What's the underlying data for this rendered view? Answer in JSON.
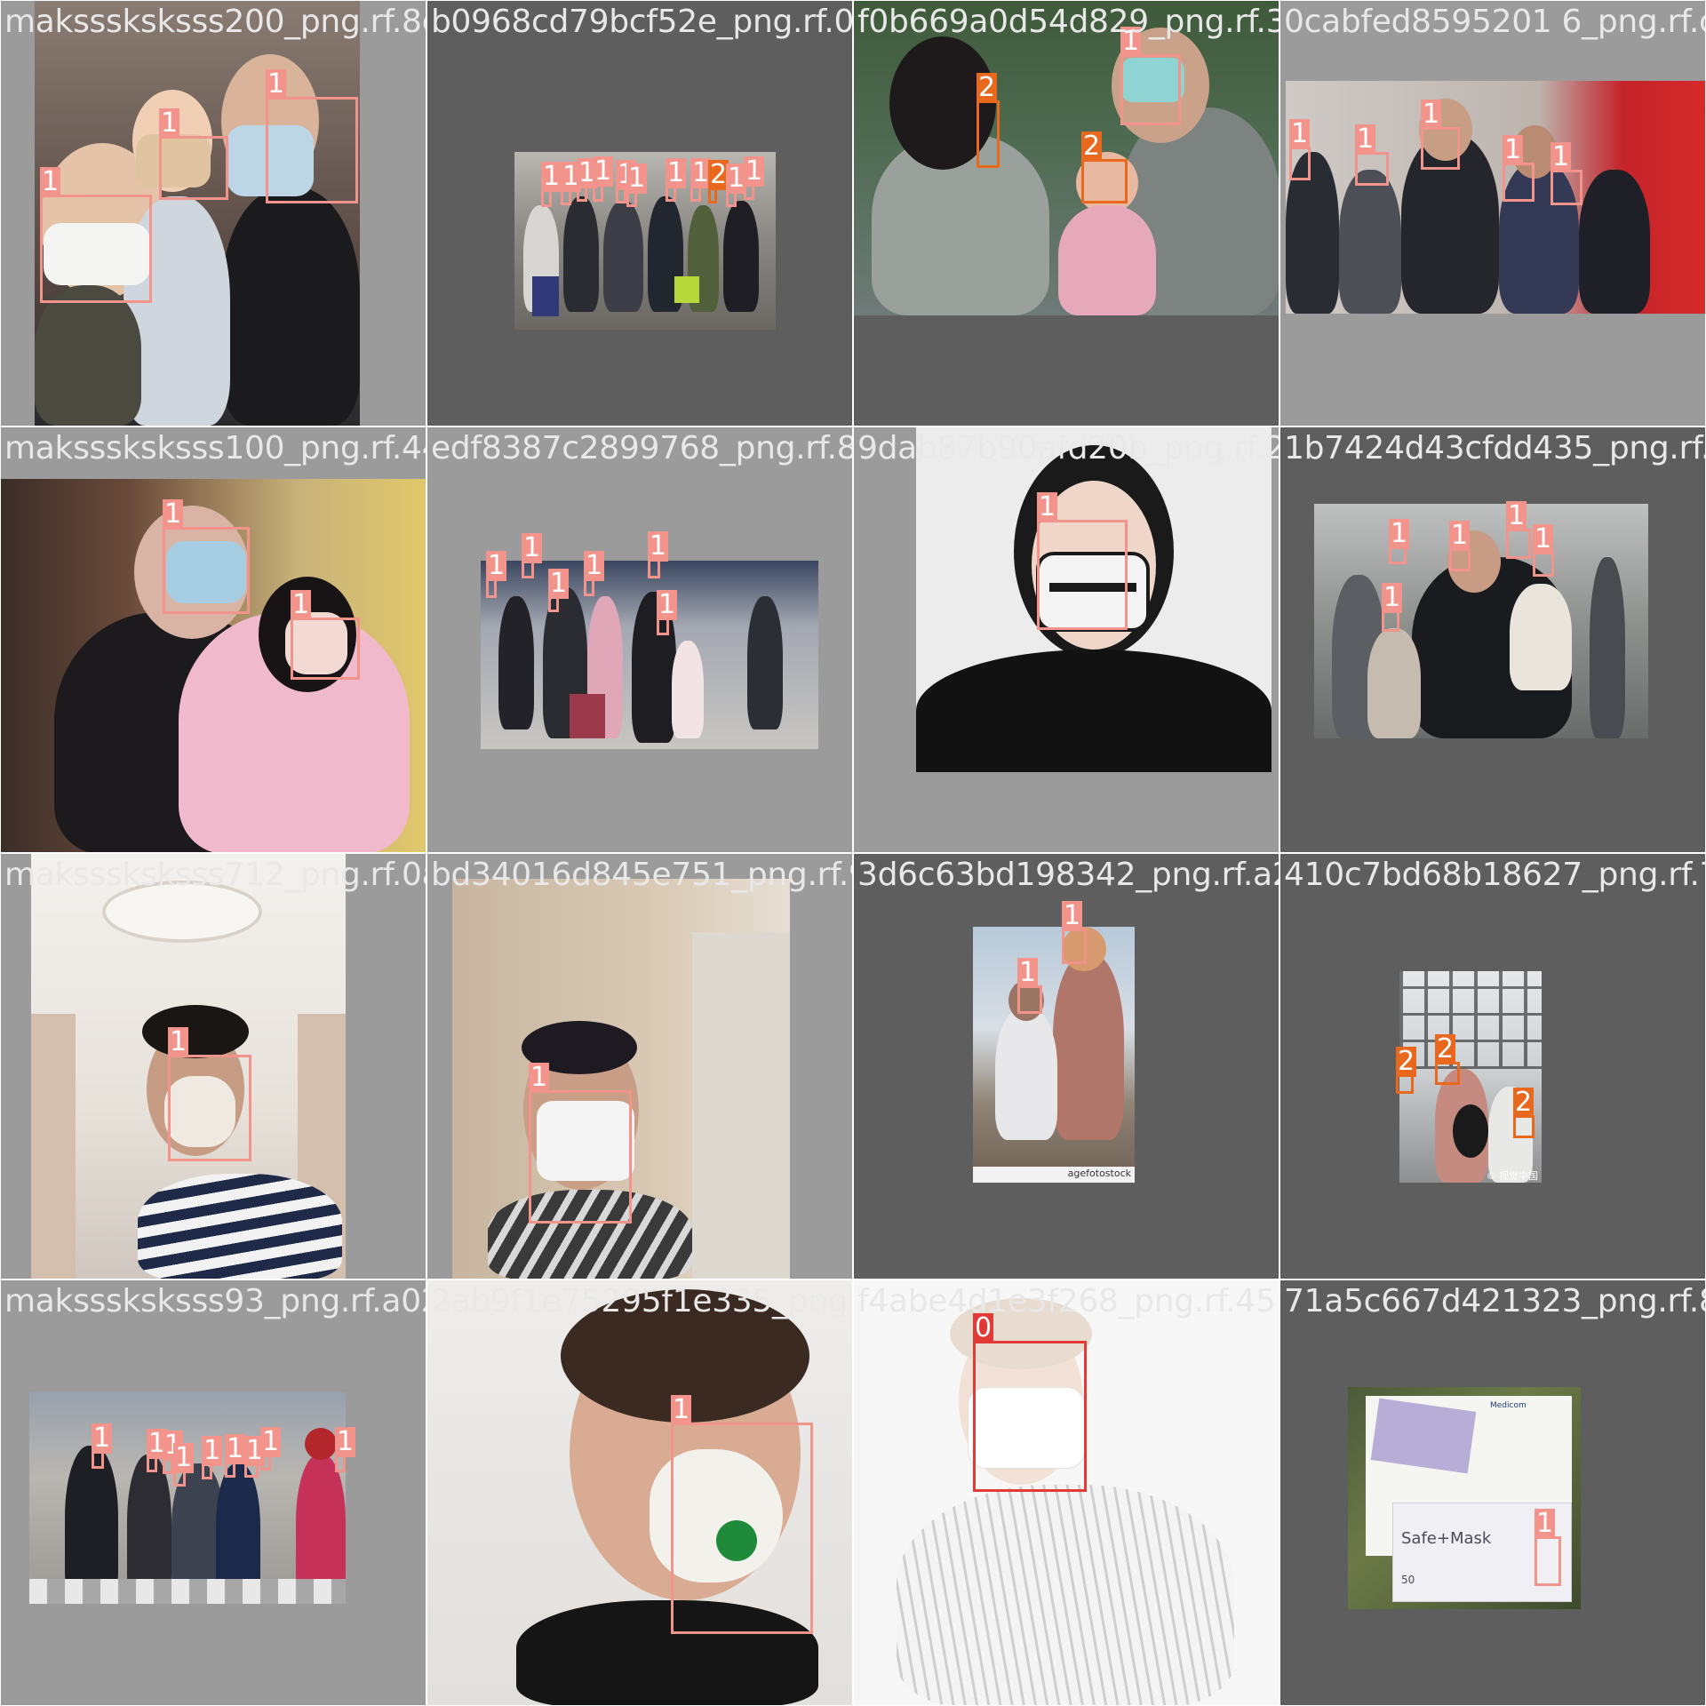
{
  "mosaic": {
    "tiles": [
      {
        "filename": "maksssksksss200_png.rf.8eb0963dd79bcf52",
        "labels": [
          "1",
          "1",
          "1"
        ]
      },
      {
        "filename": "b0968cd79bcf52e_png.rf.0c2f0b669a0d54d829",
        "labels": [
          "1",
          "1",
          "1",
          "1",
          "1",
          "1",
          "1",
          "1",
          "2",
          "1",
          "1"
        ]
      },
      {
        "filename": "f0b669a0d54d829_png.rf.390cabfed85952017",
        "labels": [
          "1",
          "2",
          "2"
        ]
      },
      {
        "filename": "0cabfed8595201 6_png.rf.ca",
        "labels": [
          "1",
          "1",
          "1",
          "1",
          "1"
        ]
      },
      {
        "filename": "maksssksksss100_png.rf.44edf8387c2899768",
        "labels": [
          "1",
          "1"
        ]
      },
      {
        "filename": "edf8387c2899768_png.rf.889dab87b90afd20b",
        "labels": [
          "1",
          "1",
          "1",
          "1",
          "1",
          "1",
          "1"
        ]
      },
      {
        "filename": "9dab87b90afd20b_png.rf.2d1b7424d43cfdd435",
        "labels": [
          "1"
        ]
      },
      {
        "filename": "1b7424d43cfdd435_png.rf.22",
        "labels": [
          "1",
          "1",
          "1",
          "1",
          "1"
        ]
      },
      {
        "filename": "maksssksksss712_png.rf.0abd34016d845e751",
        "labels": [
          "1"
        ]
      },
      {
        "filename": "bd34016d845e751_png.rf.9ff3d6c63bd198342",
        "labels": [
          "1"
        ]
      },
      {
        "filename": "3d6c63bd198342_png.rf.a2410c7bd68b18627",
        "labels": [
          "1",
          "1"
        ]
      },
      {
        "filename": "410c7bd68b18627_png.rf.7c",
        "labels": [
          "2",
          "2",
          "2"
        ]
      },
      {
        "filename": "maksssksksss93_png.rf.a02ab9f1e75295f1e335",
        "labels": [
          "1",
          "1",
          "1",
          "1",
          "1",
          "1",
          "1",
          "1",
          "1"
        ]
      },
      {
        "filename": "2ab9f1e75295f1e335_png.rf.5cf4abe4d1e3f268",
        "labels": [
          "1"
        ]
      },
      {
        "filename": "f4abe4d1e3f268_png.rf.4571a5c667d421323",
        "labels": [
          "0"
        ]
      },
      {
        "filename": "71a5c667d421323_png.rf.8b",
        "labels": [
          "1"
        ]
      }
    ]
  },
  "colors": {
    "class_0": "#e23a36",
    "class_1": "#f2948c",
    "class_2": "#e8681e",
    "pad_light": "#9b9b9b",
    "pad_dark": "#5e5e5e"
  },
  "product": {
    "brand": "Medicom",
    "name": "Safe+Mask",
    "count": "50"
  },
  "watermarks": {
    "photo_7": "© 视觉中国",
    "photo_11": "agefotostock"
  }
}
